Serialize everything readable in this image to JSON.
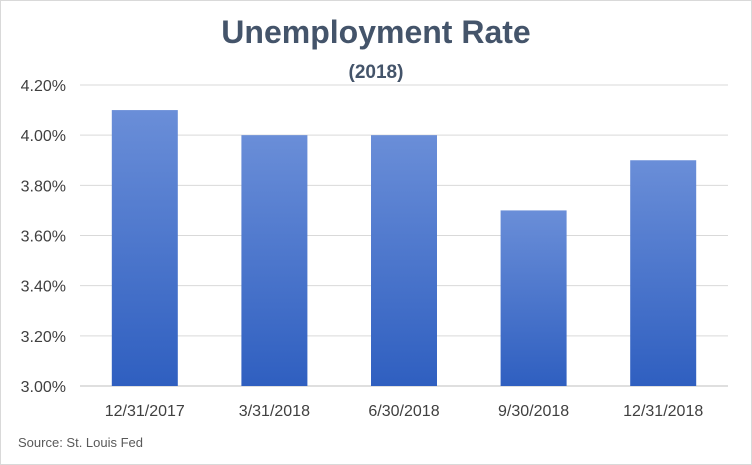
{
  "chart_data": {
    "type": "bar",
    "title": "Unemployment Rate",
    "subtitle": "(2018)",
    "categories": [
      "12/31/2017",
      "3/31/2018",
      "6/30/2018",
      "9/30/2018",
      "12/31/2018"
    ],
    "values": [
      4.1,
      4.0,
      4.0,
      3.7,
      3.9
    ],
    "ylim": [
      3.0,
      4.2
    ],
    "yticks": [
      "3.00%",
      "3.20%",
      "3.40%",
      "3.60%",
      "3.80%",
      "4.00%",
      "4.20%"
    ],
    "ytick_values": [
      3.0,
      3.2,
      3.4,
      3.6,
      3.8,
      4.0,
      4.2
    ],
    "xlabel": "",
    "ylabel": "",
    "grid": true,
    "legend": "none",
    "source": "Source: St. Louis Fed",
    "colors": {
      "bar_top": "#6a8ed8",
      "bar_bottom": "#2f5fc0",
      "grid": "#d9d9d9",
      "axis": "#bfbfbf"
    }
  }
}
